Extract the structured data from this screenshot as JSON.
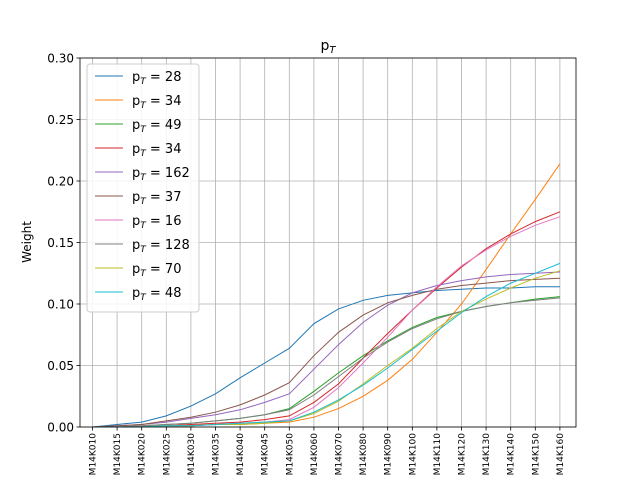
{
  "chart_data": {
    "type": "line",
    "title_base": "p",
    "title_sub": "T",
    "xlabel": "",
    "ylabel": "Weight",
    "ylim": [
      0,
      0.3
    ],
    "yticks": [
      0.0,
      0.05,
      0.1,
      0.15,
      0.2,
      0.25,
      0.3
    ],
    "ytick_labels": [
      "0.00",
      "0.05",
      "0.10",
      "0.15",
      "0.20",
      "0.25",
      "0.30"
    ],
    "grid": true,
    "legend_position": "upper-left",
    "categories": [
      "M14K010",
      "M14K015",
      "M14K020",
      "M14K025",
      "M14K030",
      "M14K035",
      "M14K040",
      "M14K045",
      "M14K050",
      "M14K060",
      "M14K070",
      "M14K080",
      "M14K090",
      "M14K100",
      "M14K110",
      "M14K120",
      "M14K130",
      "M14K140",
      "M14K150",
      "M14K160"
    ],
    "series": [
      {
        "name": "p_T = 28",
        "label_base": "p",
        "label_sub": "T",
        "label_value": " = 28",
        "color": "#1f77b4",
        "values": [
          0.0,
          0.002,
          0.004,
          0.009,
          0.017,
          0.027,
          0.04,
          0.052,
          0.064,
          0.084,
          0.096,
          0.103,
          0.107,
          0.109,
          0.111,
          0.112,
          0.113,
          0.113,
          0.114,
          0.114
        ]
      },
      {
        "name": "p_T = 34",
        "label_base": "p",
        "label_sub": "T",
        "label_value": " = 34",
        "color": "#ff7f0e",
        "values": [
          0.0,
          0.0,
          0.0,
          0.001,
          0.001,
          0.002,
          0.002,
          0.003,
          0.004,
          0.008,
          0.015,
          0.025,
          0.038,
          0.055,
          0.077,
          0.1,
          0.128,
          0.157,
          0.185,
          0.214
        ]
      },
      {
        "name": "p_T = 49",
        "label_base": "p",
        "label_sub": "T",
        "label_value": " = 49",
        "color": "#2ca02c",
        "values": [
          0.0,
          0.0,
          0.001,
          0.002,
          0.003,
          0.005,
          0.007,
          0.01,
          0.015,
          0.029,
          0.044,
          0.058,
          0.07,
          0.081,
          0.089,
          0.094,
          0.098,
          0.101,
          0.104,
          0.106
        ]
      },
      {
        "name": "p_T = 34",
        "label_base": "p",
        "label_sub": "T",
        "label_value": " = 34",
        "color": "#d62728",
        "values": [
          0.0,
          0.0,
          0.0,
          0.001,
          0.002,
          0.003,
          0.004,
          0.006,
          0.009,
          0.02,
          0.035,
          0.056,
          0.076,
          0.095,
          0.113,
          0.13,
          0.145,
          0.157,
          0.167,
          0.175
        ]
      },
      {
        "name": "p_T = 162",
        "label_base": "p",
        "label_sub": "T",
        "label_value": " = 162",
        "color": "#9467bd",
        "values": [
          0.0,
          0.001,
          0.002,
          0.004,
          0.007,
          0.01,
          0.014,
          0.02,
          0.027,
          0.047,
          0.067,
          0.085,
          0.099,
          0.109,
          0.115,
          0.119,
          0.122,
          0.124,
          0.125,
          0.126
        ]
      },
      {
        "name": "p_T = 37",
        "label_base": "p",
        "label_sub": "T",
        "label_value": " = 37",
        "color": "#8c564b",
        "values": [
          0.0,
          0.001,
          0.002,
          0.005,
          0.008,
          0.012,
          0.018,
          0.026,
          0.036,
          0.058,
          0.077,
          0.091,
          0.101,
          0.107,
          0.112,
          0.115,
          0.117,
          0.119,
          0.12,
          0.121
        ]
      },
      {
        "name": "p_T = 16",
        "label_base": "p",
        "label_sub": "T",
        "label_value": " = 16",
        "color": "#e377c2",
        "values": [
          0.0,
          0.0,
          0.0,
          0.001,
          0.001,
          0.002,
          0.003,
          0.004,
          0.006,
          0.016,
          0.032,
          0.052,
          0.073,
          0.095,
          0.114,
          0.131,
          0.144,
          0.155,
          0.164,
          0.171
        ]
      },
      {
        "name": "p_T = 128",
        "label_base": "p",
        "label_sub": "T",
        "label_value": " = 128",
        "color": "#7f7f7f",
        "values": [
          0.0,
          0.0,
          0.001,
          0.002,
          0.003,
          0.005,
          0.007,
          0.01,
          0.014,
          0.026,
          0.041,
          0.056,
          0.069,
          0.08,
          0.088,
          0.094,
          0.098,
          0.101,
          0.103,
          0.105
        ]
      },
      {
        "name": "p_T = 70",
        "label_base": "p",
        "label_sub": "T",
        "label_value": " = 70",
        "color": "#bcbd22",
        "values": [
          0.0,
          0.0,
          0.0,
          0.001,
          0.001,
          0.002,
          0.002,
          0.003,
          0.005,
          0.011,
          0.021,
          0.035,
          0.05,
          0.064,
          0.08,
          0.094,
          0.104,
          0.113,
          0.121,
          0.127
        ]
      },
      {
        "name": "p_T = 48",
        "label_base": "p",
        "label_sub": "T",
        "label_value": " = 48",
        "color": "#17becf",
        "values": [
          0.0,
          0.0,
          0.0,
          0.001,
          0.001,
          0.002,
          0.003,
          0.004,
          0.005,
          0.012,
          0.022,
          0.034,
          0.048,
          0.063,
          0.078,
          0.093,
          0.106,
          0.117,
          0.125,
          0.133
        ]
      }
    ]
  }
}
